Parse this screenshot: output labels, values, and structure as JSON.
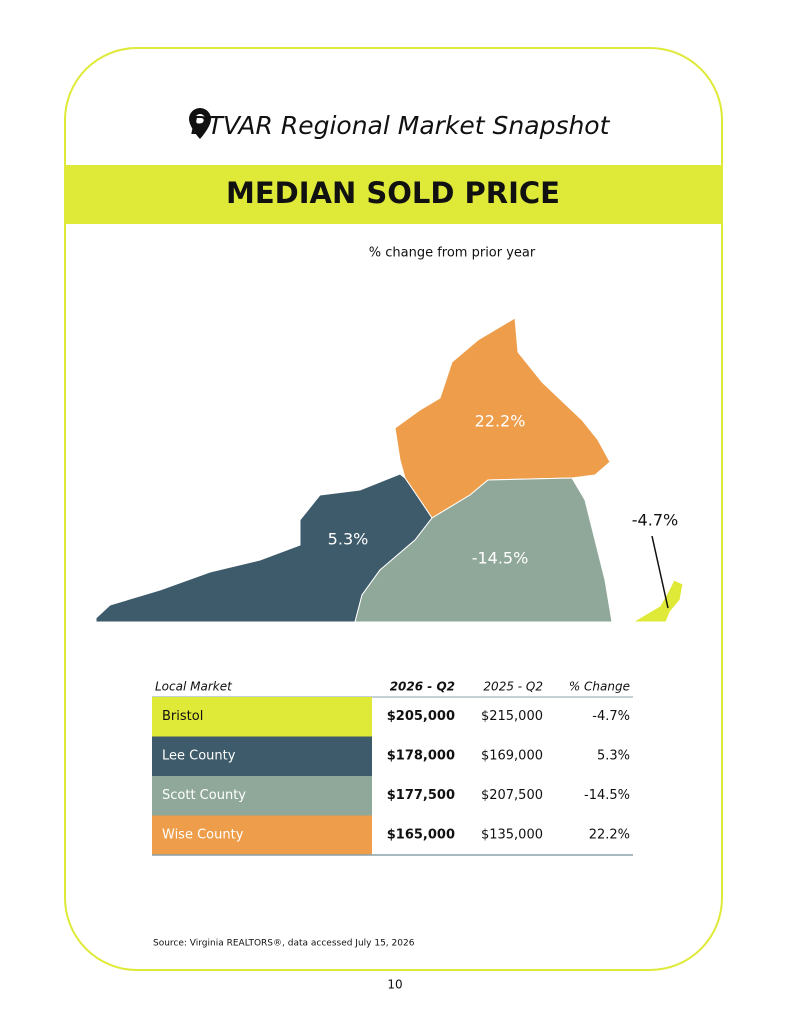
{
  "header": {
    "title": "BTVAR Regional Market Snapshot",
    "banner": "MEDIAN SOLD PRICE",
    "subtitle": "% change from prior year"
  },
  "map": {
    "regions": [
      {
        "name": "Wise County",
        "label": "22.2%",
        "color": "#ee9d4a"
      },
      {
        "name": "Lee County",
        "label": "5.3%",
        "color": "#3e5b6b"
      },
      {
        "name": "Scott County",
        "label": "-14.5%",
        "color": "#90a89a"
      },
      {
        "name": "Bristol",
        "label": "-4.7%",
        "color": "#dfe937"
      }
    ]
  },
  "table": {
    "columns": [
      "Local Market",
      "2026 - Q2",
      "2025 - Q2",
      "% Change"
    ],
    "rows": [
      [
        "Bristol",
        "$205,000",
        "$215,000",
        "-4.7%"
      ],
      [
        "Lee County",
        "$178,000",
        "$169,000",
        "5.3%"
      ],
      [
        "Scott County",
        "$177,500",
        "$207,500",
        "-14.5%"
      ],
      [
        "Wise County",
        "$165,000",
        "$135,000",
        "22.2%"
      ]
    ],
    "row_colors": [
      "#dfe937",
      "#3e5b6b",
      "#90a89a",
      "#ee9d4a"
    ]
  },
  "footer": {
    "source": "Source: Virginia REALTORS®, data accessed July 15, 2026",
    "page": "10"
  }
}
